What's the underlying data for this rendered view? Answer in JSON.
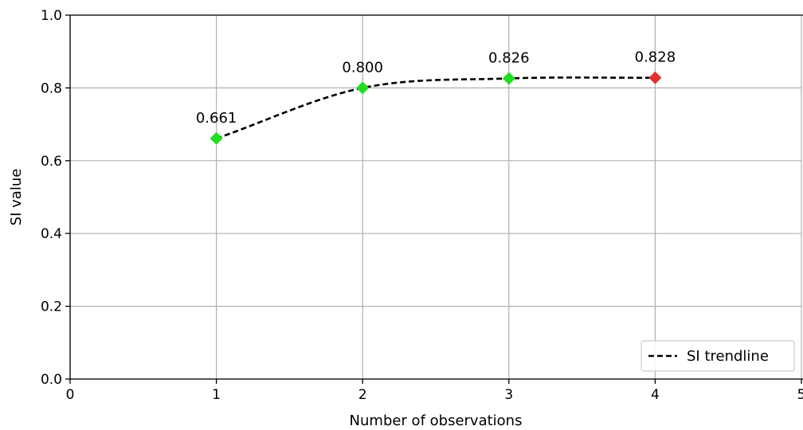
{
  "chart_data": {
    "type": "line",
    "xlabel": "Number of observations",
    "ylabel": "SI value",
    "xlim": [
      0,
      5
    ],
    "ylim": [
      0.0,
      1.0
    ],
    "x_ticks": [
      "0",
      "1",
      "2",
      "3",
      "4",
      "5"
    ],
    "y_ticks": [
      "0.0",
      "0.2",
      "0.4",
      "0.6",
      "0.8",
      "1.0"
    ],
    "grid": true,
    "legend_position": "bottom-right",
    "series": [
      {
        "name": "SI trendline",
        "style": "dashed",
        "color": "#000000",
        "x": [
          1,
          2,
          3,
          4
        ],
        "y": [
          0.661,
          0.8,
          0.826,
          0.828
        ]
      }
    ],
    "points": [
      {
        "x": 1,
        "y": 0.661,
        "label": "0.661",
        "color": "#22dd22",
        "marker": "diamond"
      },
      {
        "x": 2,
        "y": 0.8,
        "label": "0.800",
        "color": "#22dd22",
        "marker": "diamond"
      },
      {
        "x": 3,
        "y": 0.826,
        "label": "0.826",
        "color": "#22dd22",
        "marker": "diamond"
      },
      {
        "x": 4,
        "y": 0.828,
        "label": "0.828",
        "color": "#e03030",
        "marker": "diamond"
      }
    ]
  }
}
